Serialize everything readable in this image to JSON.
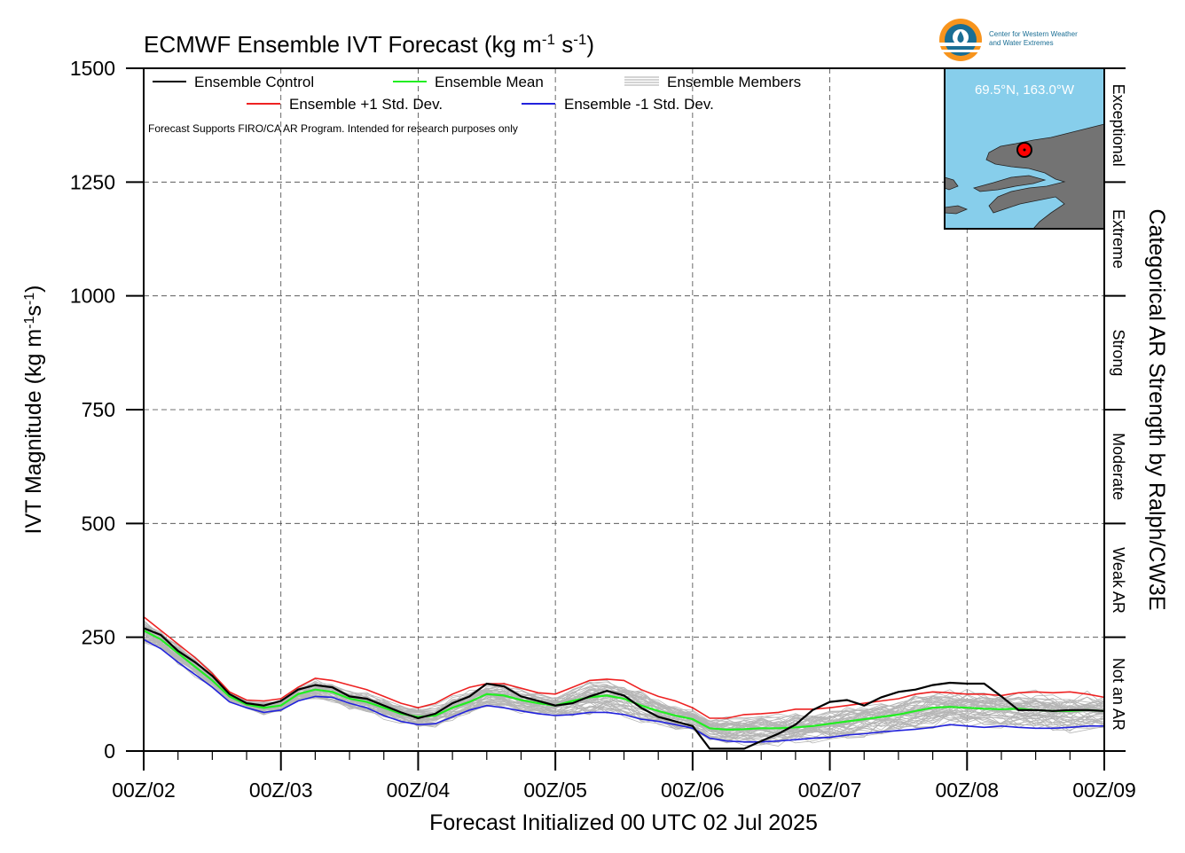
{
  "chart_data": {
    "type": "line",
    "title": "ECMWF Ensemble IVT Forecast (kg m",
    "title_units": {
      "sup1": "-1",
      "mid": " s",
      "sup2": "-1",
      "end": ")"
    },
    "ylabel": "IVT Magnitude (kg m",
    "ylabel_units": {
      "sup1": "-1",
      "mid": "s",
      "sup2": "-1",
      "end": ")"
    },
    "xlabel": "Forecast Initialized 00 UTC 02 Jul 2025",
    "right_label": "Categorical AR Strength by Ralph/CW3E",
    "note": "Forecast Supports FIRO/CA AR Program. Intended for research purposes only",
    "ylim": [
      0,
      1500
    ],
    "yticks": [
      0,
      250,
      500,
      750,
      1000,
      1250,
      1500
    ],
    "xlim": [
      0,
      168
    ],
    "xticks": [
      {
        "x": 0,
        "label": "00Z/02"
      },
      {
        "x": 24,
        "label": "00Z/03"
      },
      {
        "x": 48,
        "label": "00Z/04"
      },
      {
        "x": 72,
        "label": "00Z/05"
      },
      {
        "x": 96,
        "label": "00Z/06"
      },
      {
        "x": 120,
        "label": "00Z/07"
      },
      {
        "x": 144,
        "label": "00Z/08"
      },
      {
        "x": 168,
        "label": "00Z/09"
      }
    ],
    "categories": [
      {
        "label": "Not an AR",
        "from": 0,
        "to": 250
      },
      {
        "label": "Weak AR",
        "from": 250,
        "to": 500
      },
      {
        "label": "Moderate",
        "from": 500,
        "to": 750
      },
      {
        "label": "Strong",
        "from": 750,
        "to": 1000
      },
      {
        "label": "Extreme",
        "from": 1000,
        "to": 1250
      },
      {
        "label": "Exceptional",
        "from": 1250,
        "to": 1500
      }
    ],
    "grid": true,
    "legend": {
      "position": "top-left",
      "entries": [
        {
          "name": "Ensemble Control",
          "color": "#000000"
        },
        {
          "name": "Ensemble Mean",
          "color": "#22ee22"
        },
        {
          "name": "Ensemble Members",
          "color": "#aaaaaa"
        },
        {
          "name": "Ensemble +1 Std. Dev.",
          "color": "#ee2222"
        },
        {
          "name": "Ensemble -1 Std. Dev.",
          "color": "#2222dd"
        }
      ]
    },
    "x": [
      0,
      3,
      6,
      9,
      12,
      15,
      18,
      21,
      24,
      27,
      30,
      33,
      36,
      39,
      42,
      45,
      48,
      51,
      54,
      57,
      60,
      63,
      66,
      69,
      72,
      75,
      78,
      81,
      84,
      87,
      90,
      93,
      96,
      99,
      102,
      105,
      108,
      111,
      114,
      117,
      120,
      123,
      126,
      129,
      132,
      135,
      138,
      141,
      144,
      147,
      150,
      153,
      156,
      159,
      162,
      165,
      168
    ],
    "series": [
      {
        "name": "Ensemble Control",
        "color": "#000000",
        "values": [
          270,
          255,
          220,
          195,
          165,
          125,
          105,
          100,
          110,
          135,
          145,
          140,
          120,
          115,
          100,
          85,
          72,
          82,
          105,
          120,
          148,
          142,
          120,
          110,
          100,
          105,
          120,
          132,
          122,
          95,
          75,
          65,
          55,
          5,
          5,
          5,
          22,
          38,
          58,
          90,
          108,
          112,
          100,
          118,
          130,
          135,
          145,
          150,
          148,
          148,
          120,
          90,
          90,
          88,
          90,
          90,
          88
        ]
      },
      {
        "name": "Ensemble Mean",
        "color": "#22ee22",
        "values": [
          265,
          245,
          215,
          185,
          155,
          120,
          102,
          95,
          100,
          125,
          135,
          130,
          115,
          108,
          95,
          82,
          75,
          78,
          95,
          108,
          125,
          122,
          112,
          105,
          100,
          110,
          118,
          122,
          115,
          100,
          88,
          78,
          70,
          50,
          47,
          48,
          50,
          50,
          52,
          55,
          60,
          65,
          70,
          75,
          80,
          88,
          95,
          97,
          95,
          93,
          92,
          93,
          90,
          88,
          88,
          90,
          88
        ]
      },
      {
        "name": "Ensemble +1 Std. Dev.",
        "color": "#ee2222",
        "values": [
          295,
          265,
          235,
          205,
          170,
          130,
          112,
          110,
          115,
          140,
          160,
          155,
          145,
          135,
          120,
          105,
          95,
          105,
          125,
          140,
          148,
          148,
          138,
          128,
          125,
          140,
          155,
          158,
          155,
          135,
          120,
          110,
          95,
          72,
          72,
          80,
          82,
          85,
          92,
          92,
          95,
          100,
          105,
          110,
          115,
          125,
          130,
          128,
          125,
          125,
          122,
          128,
          130,
          128,
          130,
          125,
          118
        ]
      },
      {
        "name": "Ensemble -1 Std. Dev.",
        "color": "#2222dd",
        "values": [
          245,
          225,
          195,
          168,
          140,
          108,
          95,
          85,
          90,
          110,
          120,
          118,
          105,
          95,
          78,
          65,
          58,
          60,
          75,
          90,
          100,
          95,
          88,
          82,
          78,
          80,
          85,
          85,
          80,
          70,
          65,
          58,
          50,
          28,
          22,
          20,
          20,
          22,
          25,
          28,
          30,
          35,
          38,
          42,
          45,
          48,
          52,
          58,
          55,
          52,
          55,
          52,
          50,
          50,
          52,
          55,
          55
        ]
      }
    ],
    "members_count": 50,
    "inset_map": {
      "location_label": "69.5°N, 163.0°W",
      "water_color": "#87ceeb",
      "land_color": "#737373",
      "marker_color": "#ff0000"
    }
  },
  "logo": {
    "line1": "Center for Western Weather",
    "line2": "and Water Extremes"
  }
}
